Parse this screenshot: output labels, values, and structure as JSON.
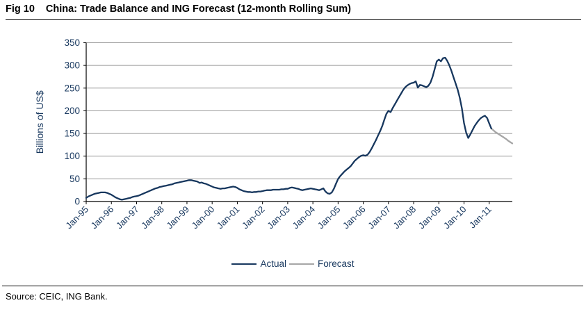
{
  "header": {
    "fig_label": "Fig 10",
    "title": "China: Trade Balance and ING Forecast (12-month Rolling Sum)"
  },
  "source": {
    "text": "Source: CEIC, ING Bank."
  },
  "legend": [
    {
      "label": "Actual",
      "color_key": "actual"
    },
    {
      "label": "Forecast",
      "color_key": "forecast"
    }
  ],
  "colors": {
    "actual": "#17375e",
    "forecast": "#a6a6a6",
    "grid": "#999999",
    "axis": "#000000",
    "text": "#17375e"
  },
  "chart_data": {
    "type": "line",
    "title": "China: Trade Balance and ING Forecast (12-month Rolling Sum)",
    "ylabel": "Billions of US$",
    "xlabel": "",
    "ylim": [
      0,
      350
    ],
    "yticks": [
      0,
      50,
      100,
      150,
      200,
      250,
      300,
      350
    ],
    "grid": "horizontal",
    "legend_position": "bottom-center",
    "x_unit": "month",
    "x_start": "Jan-1995",
    "x_months_total": 203,
    "x_tick_interval_months": 12,
    "x_tick_labels": [
      "Jan-95",
      "Jan-96",
      "Jan-97",
      "Jan-98",
      "Jan-99",
      "Jan-00",
      "Jan-01",
      "Jan-02",
      "Jan-03",
      "Jan-04",
      "Jan-05",
      "Jan-06",
      "Jan-07",
      "Jan-08",
      "Jan-09",
      "Jan-10",
      "Jan-11"
    ],
    "series": [
      {
        "name": "Actual",
        "color": "#17375e",
        "start_index": 0,
        "values": [
          8,
          11,
          13,
          15,
          17,
          18,
          19,
          20,
          20,
          20,
          19,
          17,
          15,
          12,
          9,
          7,
          5,
          4,
          5,
          6,
          7,
          8,
          10,
          11,
          12,
          13,
          15,
          17,
          19,
          21,
          23,
          25,
          27,
          29,
          30,
          32,
          33,
          34,
          35,
          36,
          37,
          38,
          40,
          41,
          42,
          43,
          44,
          45,
          46,
          47,
          47,
          46,
          45,
          44,
          41,
          42,
          40,
          39,
          37,
          35,
          33,
          31,
          30,
          29,
          28,
          29,
          29,
          30,
          31,
          32,
          33,
          32,
          30,
          27,
          25,
          23,
          22,
          21,
          21,
          20,
          21,
          21,
          22,
          22,
          23,
          24,
          25,
          25,
          25,
          26,
          26,
          26,
          26,
          27,
          27,
          28,
          28,
          30,
          31,
          30,
          29,
          28,
          26,
          25,
          26,
          27,
          28,
          29,
          28,
          27,
          26,
          25,
          27,
          29,
          22,
          18,
          17,
          20,
          28,
          39,
          50,
          56,
          61,
          66,
          70,
          74,
          78,
          84,
          90,
          94,
          98,
          101,
          102,
          101,
          103,
          109,
          117,
          126,
          135,
          145,
          155,
          166,
          180,
          193,
          200,
          197,
          206,
          214,
          222,
          230,
          238,
          246,
          252,
          256,
          259,
          261,
          262,
          265,
          251,
          257,
          256,
          254,
          252,
          255,
          262,
          275,
          292,
          309,
          313,
          309,
          316,
          317,
          310,
          300,
          288,
          274,
          260,
          246,
          228,
          205,
          173,
          152,
          140,
          148,
          157,
          166,
          173,
          179,
          184,
          187,
          189,
          184,
          172,
          161
        ]
      },
      {
        "name": "Forecast",
        "color": "#a6a6a6",
        "start_index": 193,
        "values": [
          161,
          157,
          153,
          150,
          147,
          144,
          141,
          138,
          134,
          131,
          128
        ]
      }
    ]
  }
}
